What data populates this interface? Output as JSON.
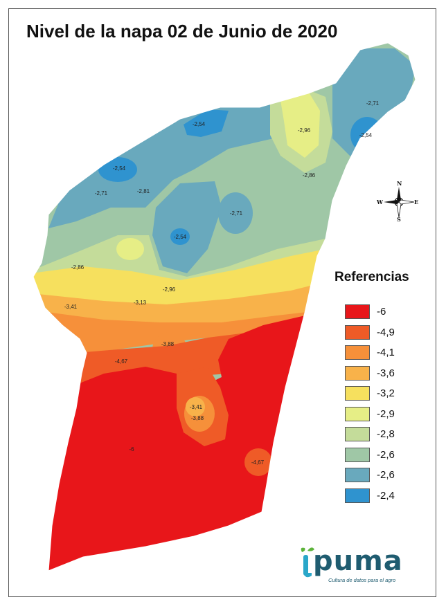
{
  "title": "Nivel de la napa 02 de Junio de 2020",
  "legend": {
    "title": "Referencias",
    "items": [
      {
        "label": "-6",
        "color": "#e8161a"
      },
      {
        "label": "-4,9",
        "color": "#ef5b27"
      },
      {
        "label": "-4,1",
        "color": "#f6903a"
      },
      {
        "label": "-3,6",
        "color": "#f8b24a"
      },
      {
        "label": "-3,2",
        "color": "#f6e05e"
      },
      {
        "label": "-2,9",
        "color": "#e6ee86"
      },
      {
        "label": "-2,8",
        "color": "#c4dc9a"
      },
      {
        "label": "-2,6",
        "color": "#9fc7a6"
      },
      {
        "label": "-2,6",
        "color": "#69a9bd"
      },
      {
        "label": "-2,4",
        "color": "#2f93cf"
      }
    ]
  },
  "contour_labels": [
    "-2,71",
    "-2,54",
    "-2,96",
    "-2,54",
    "-2,54",
    "-2,86",
    "-2,71",
    "-2,81",
    "-2,71",
    "-2,54",
    "-2,86",
    "-2,96",
    "-3,41",
    "-3,13",
    "-3,88",
    "-4,67",
    "-3,41",
    "-3,88",
    "-6",
    "-4,67"
  ],
  "compass": {
    "n": "N",
    "s": "S",
    "e": "E",
    "w": "W"
  },
  "logo": {
    "word": "puma",
    "tagline": "Cultura de datos para el agro"
  }
}
